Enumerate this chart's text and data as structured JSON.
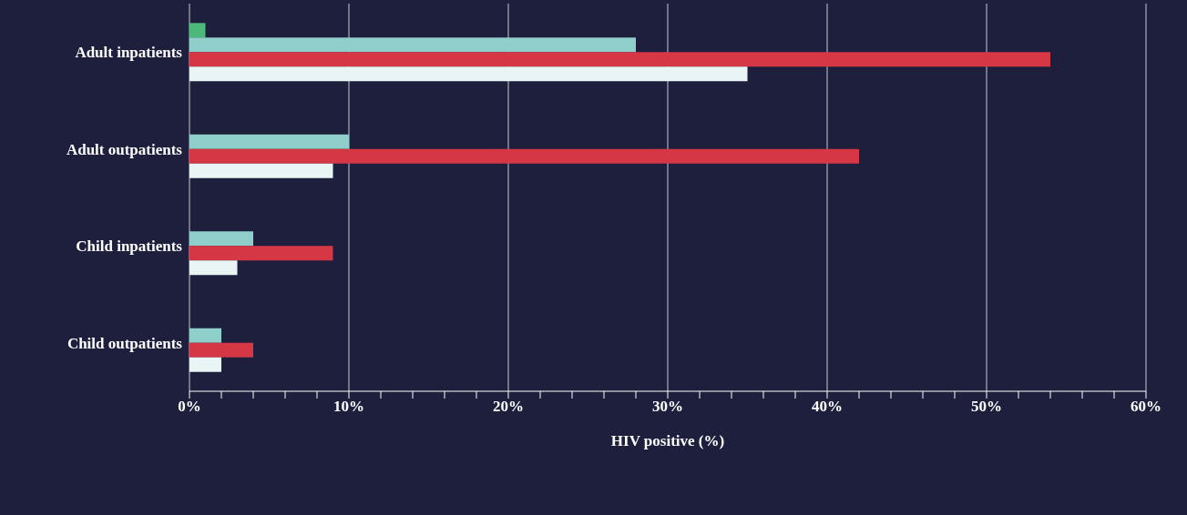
{
  "chart_data": {
    "type": "bar",
    "orientation": "horizontal",
    "xlabel": "HIV positive (%)",
    "categories": [
      "Adult inpatients",
      "Adult outpatients",
      "Child inpatients",
      "Child outpatients"
    ],
    "series": [
      {
        "color": "#4cb97b",
        "values": [
          1,
          null,
          null,
          null
        ]
      },
      {
        "color": "#8ecfcb",
        "values": [
          28,
          10,
          4,
          2
        ]
      },
      {
        "color": "#d63744",
        "values": [
          54,
          42,
          9,
          4
        ]
      },
      {
        "color": "#e9f5f5",
        "values": [
          35,
          9,
          3,
          2
        ]
      }
    ],
    "xlim": [
      0,
      60
    ],
    "xticks": [
      {
        "value": 0,
        "label": "0%"
      },
      {
        "value": 2,
        "label": null
      },
      {
        "value": 4,
        "label": null
      },
      {
        "value": 6,
        "label": null
      },
      {
        "value": 8,
        "label": null
      },
      {
        "value": 10,
        "label": "10%"
      },
      {
        "value": 12,
        "label": null
      },
      {
        "value": 14,
        "label": null
      },
      {
        "value": 16,
        "label": null
      },
      {
        "value": 18,
        "label": null
      },
      {
        "value": 20,
        "label": "20%"
      },
      {
        "value": 22,
        "label": null
      },
      {
        "value": 24,
        "label": null
      },
      {
        "value": 26,
        "label": null
      },
      {
        "value": 28,
        "label": null
      },
      {
        "value": 30,
        "label": "30%"
      },
      {
        "value": 32,
        "label": null
      },
      {
        "value": 34,
        "label": null
      },
      {
        "value": 36,
        "label": null
      },
      {
        "value": 38,
        "label": null
      },
      {
        "value": 40,
        "label": "40%"
      },
      {
        "value": 42,
        "label": null
      },
      {
        "value": 44,
        "label": null
      },
      {
        "value": 46,
        "label": null
      },
      {
        "value": 48,
        "label": null
      },
      {
        "value": 50,
        "label": "50%"
      },
      {
        "value": 52,
        "label": null
      },
      {
        "value": 54,
        "label": null
      },
      {
        "value": 56,
        "label": null
      },
      {
        "value": 58,
        "label": null
      },
      {
        "value": 60,
        "label": "60%"
      }
    ],
    "grid": "x"
  }
}
